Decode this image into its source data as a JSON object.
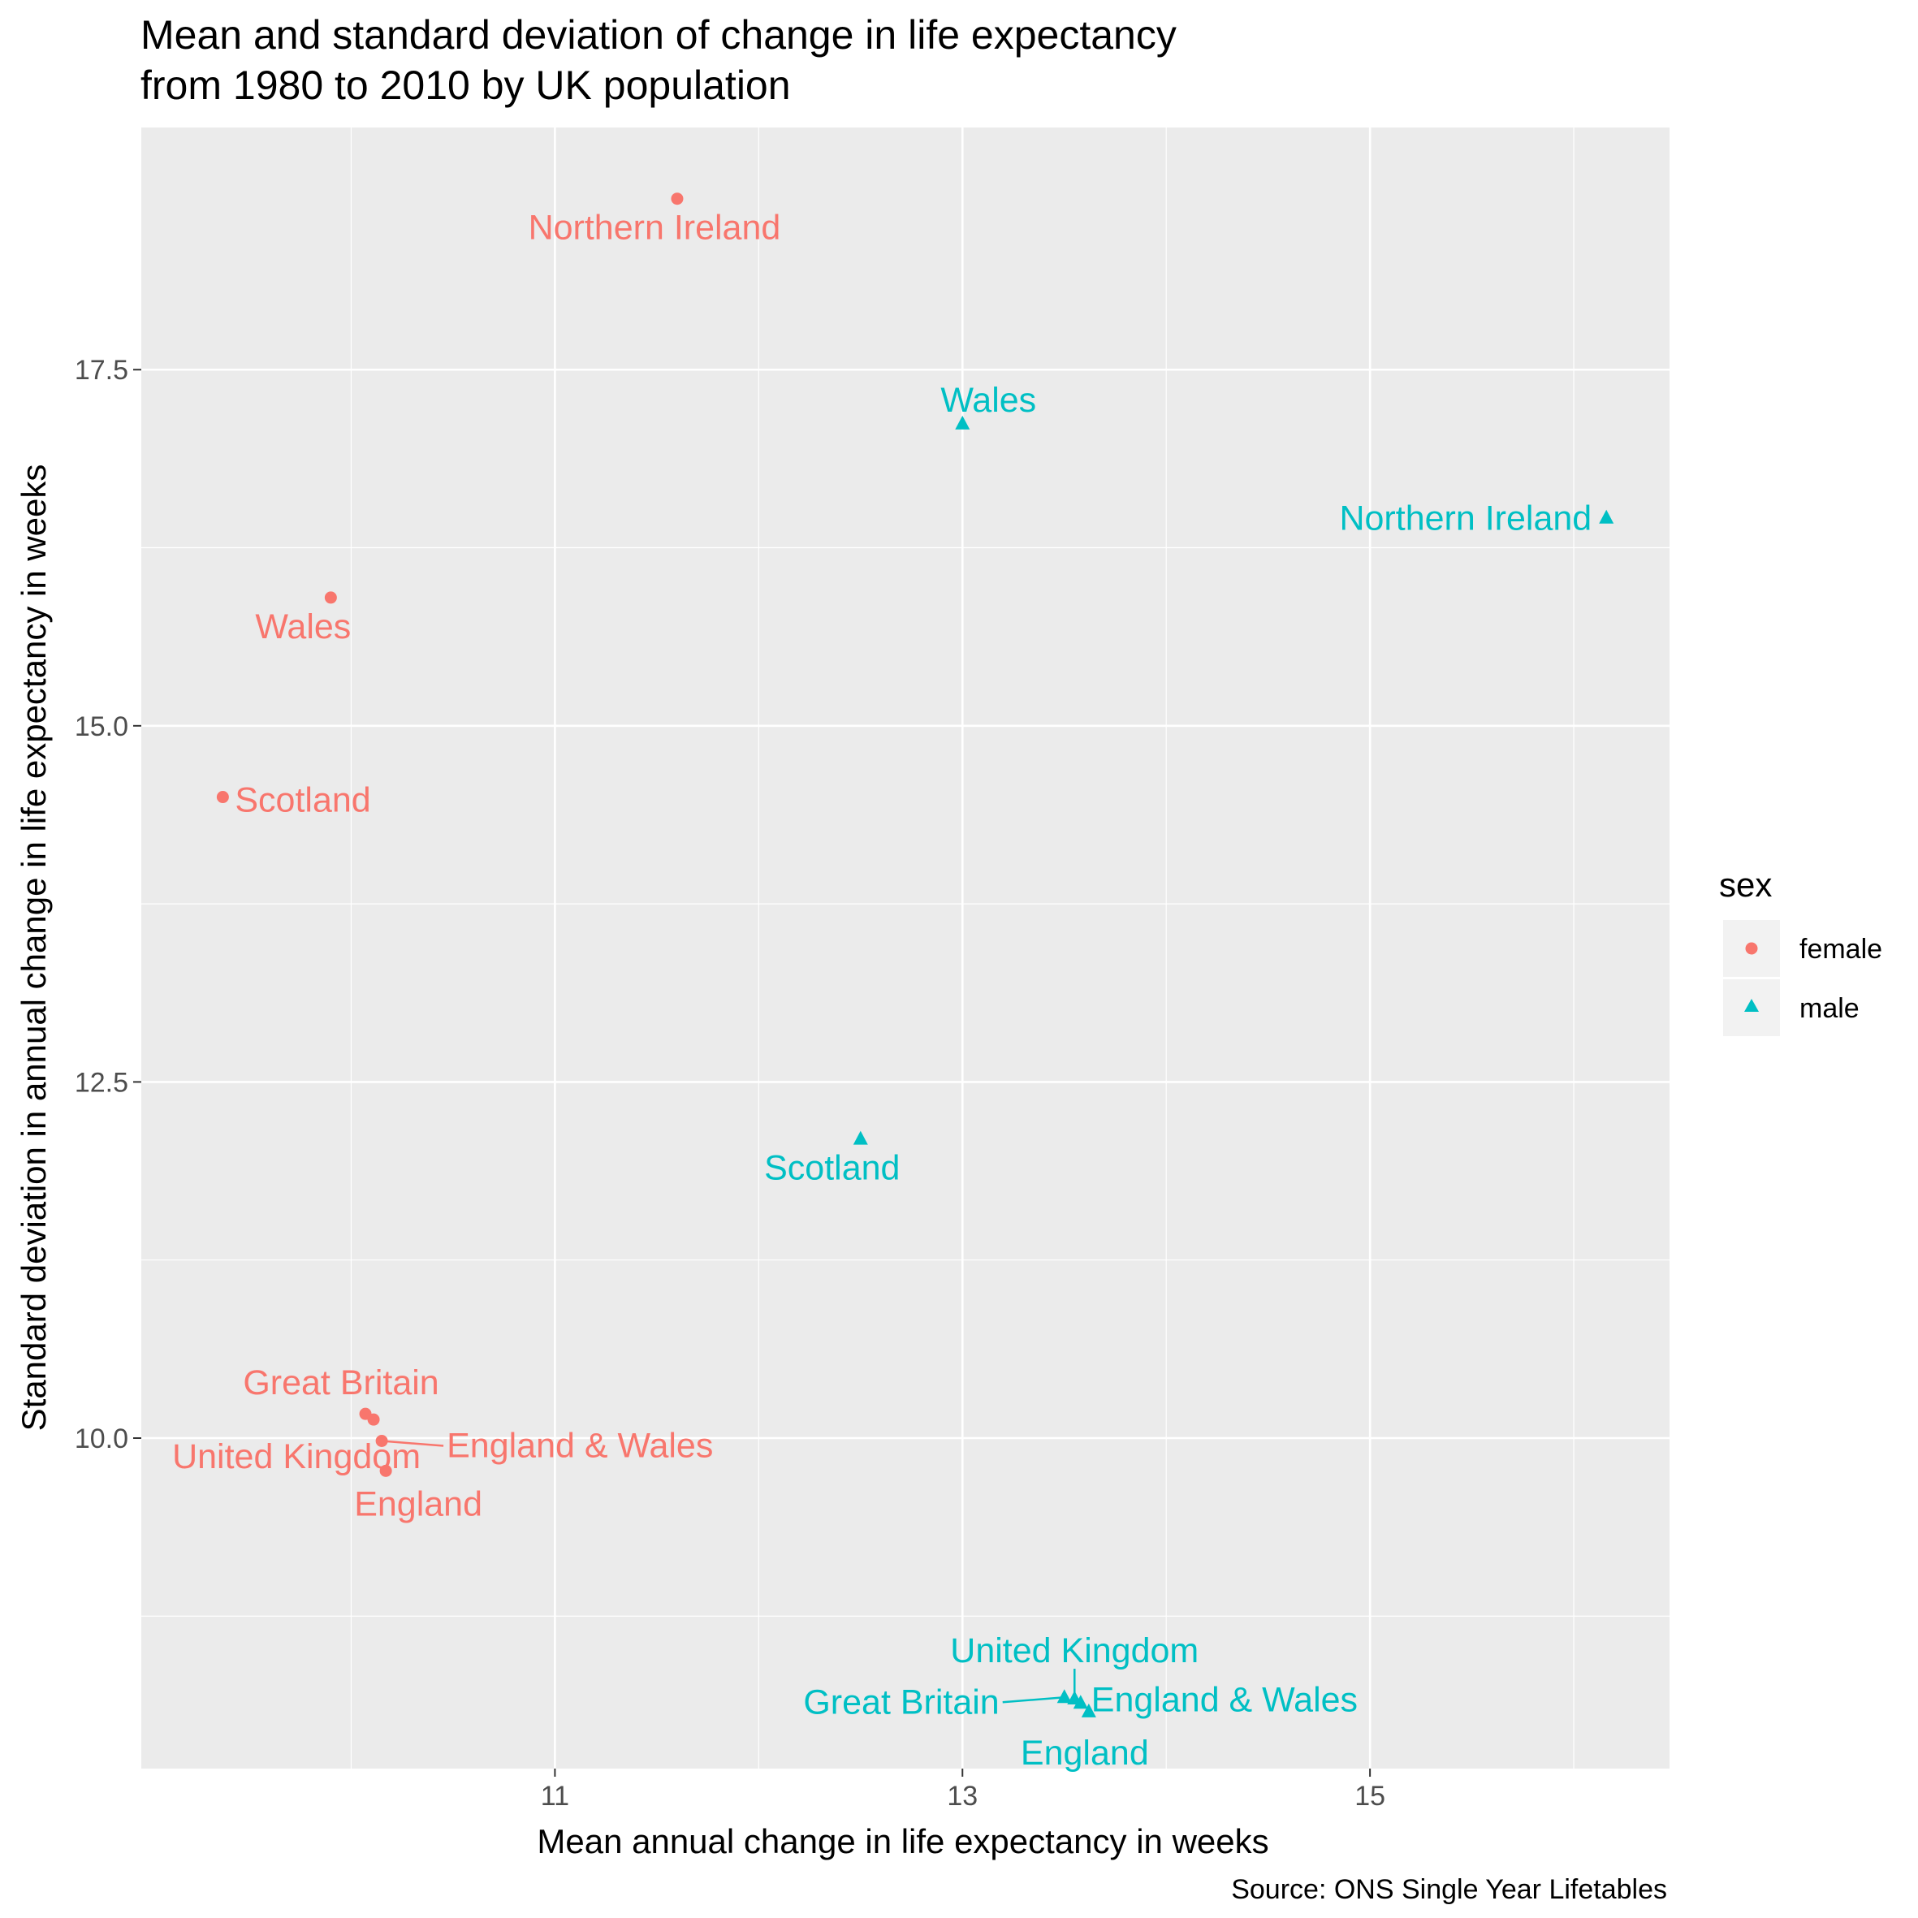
{
  "colors": {
    "female": "#F8766D",
    "male": "#00BFC4",
    "panel": "#EBEBEB",
    "grid": "#FFFFFF"
  },
  "chart_data": {
    "type": "scatter",
    "title_line1": "Mean and standard deviation of change in life expectancy",
    "title_line2": "from 1980 to 2010 by UK population",
    "xlabel": "Mean annual change in life expectancy in weeks",
    "ylabel": "Standard deviation in annual change in life expectancy in weeks",
    "caption": "Source: ONS Single Year Lifetables",
    "xlim": [
      8.97,
      16.47
    ],
    "ylim": [
      7.68,
      19.2
    ],
    "x_ticks": [
      11,
      13,
      15
    ],
    "x_tick_labels": [
      "11",
      "13",
      "15"
    ],
    "y_ticks": [
      10.0,
      12.5,
      15.0,
      17.5
    ],
    "y_tick_labels": [
      "10.0",
      "12.5",
      "15.0",
      "17.5"
    ],
    "grid": true,
    "legend": {
      "title": "sex",
      "position": "right",
      "entries": [
        {
          "label": "female",
          "shape": "circle"
        },
        {
          "label": "male",
          "shape": "triangle"
        }
      ]
    },
    "series": [
      {
        "name": "female",
        "points": [
          {
            "label": "Northern Ireland",
            "x": 11.6,
            "y": 18.7
          },
          {
            "label": "Wales",
            "x": 9.9,
            "y": 15.9
          },
          {
            "label": "Scotland",
            "x": 9.37,
            "y": 14.5
          },
          {
            "label": "Great Britain",
            "x": 10.07,
            "y": 10.17
          },
          {
            "label": "United Kingdom",
            "x": 10.11,
            "y": 10.13
          },
          {
            "label": "England & Wales",
            "x": 10.15,
            "y": 9.98
          },
          {
            "label": "England",
            "x": 10.17,
            "y": 9.77
          }
        ]
      },
      {
        "name": "male",
        "points": [
          {
            "label": "Wales",
            "x": 13.0,
            "y": 17.12
          },
          {
            "label": "Northern Ireland",
            "x": 16.16,
            "y": 16.46
          },
          {
            "label": "Scotland",
            "x": 12.5,
            "y": 12.1
          },
          {
            "label": "Great Britain",
            "x": 13.5,
            "y": 8.18
          },
          {
            "label": "United Kingdom",
            "x": 13.55,
            "y": 8.17
          },
          {
            "label": "England & Wales",
            "x": 13.58,
            "y": 8.14
          },
          {
            "label": "England",
            "x": 13.62,
            "y": 8.08
          }
        ]
      }
    ]
  }
}
